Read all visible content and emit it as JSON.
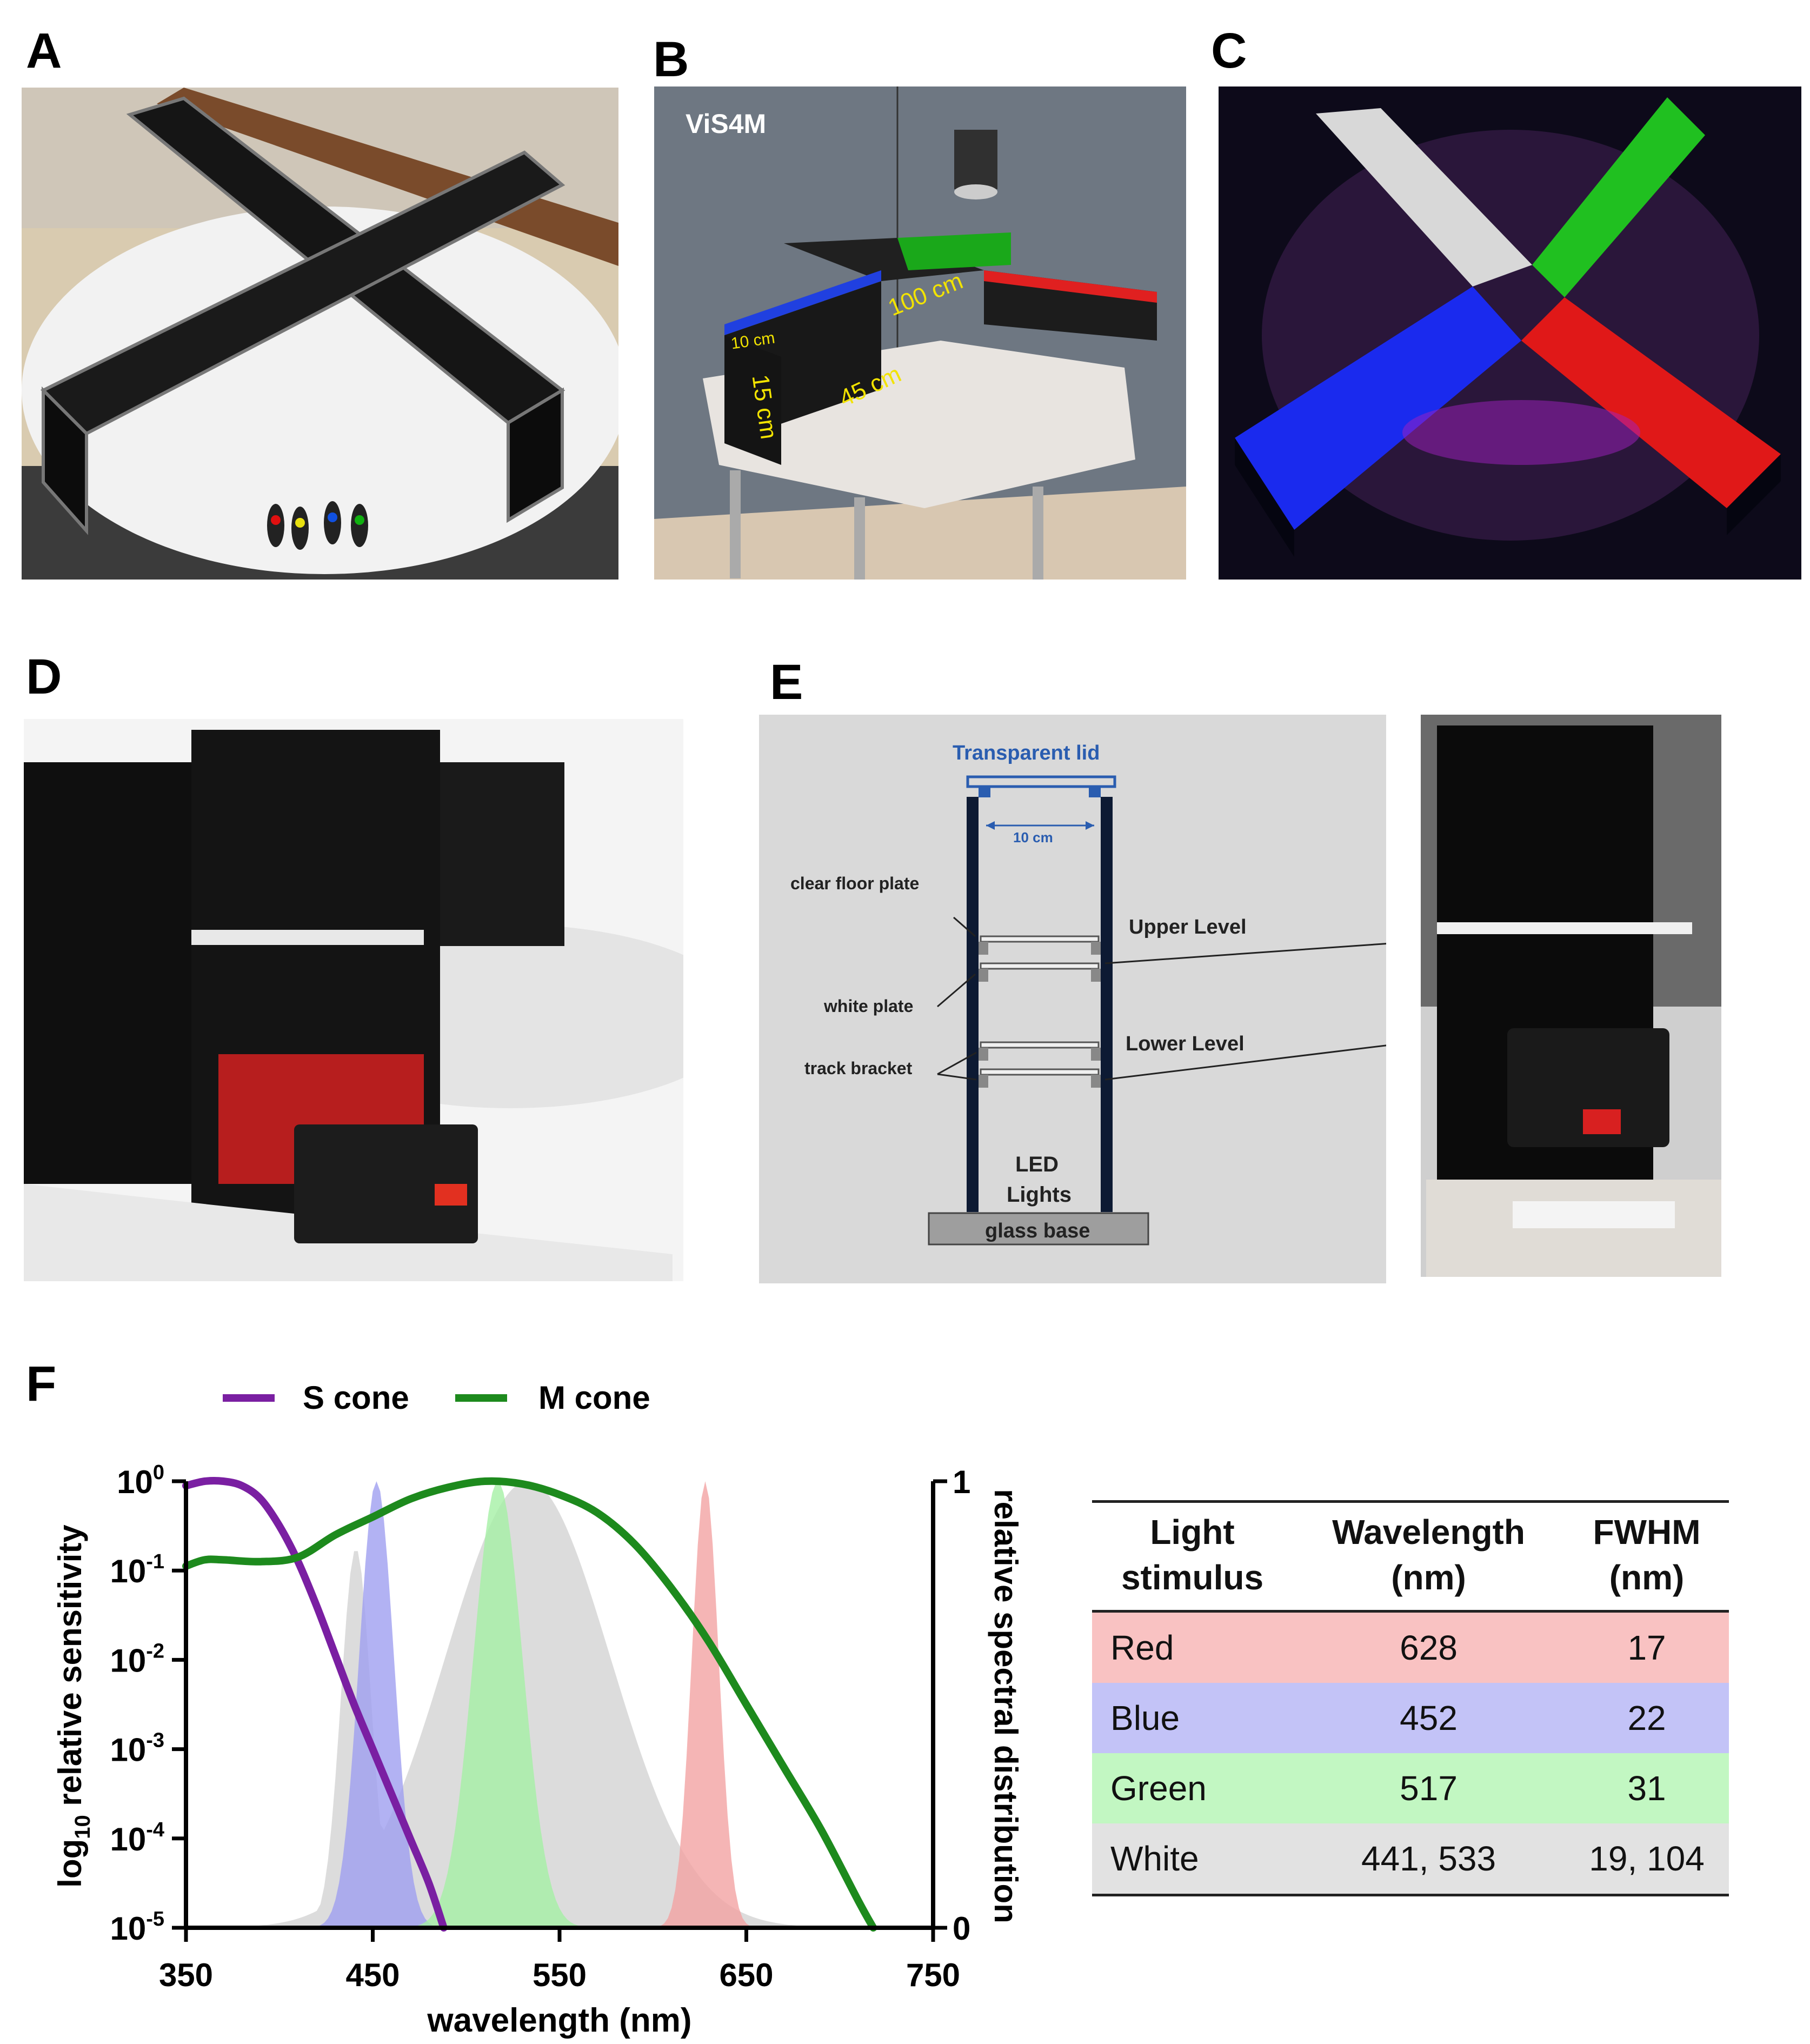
{
  "panels": {
    "A": {
      "letter": "A"
    },
    "B": {
      "letter": "B",
      "title": "ViS4M",
      "dim_width": "10 cm",
      "dim_height": "15 cm",
      "dim_arm": "45 cm",
      "dim_total": "100 cm"
    },
    "C": {
      "letter": "C"
    },
    "D": {
      "letter": "D"
    },
    "E": {
      "letter": "E",
      "transparent_lid": "Transparent lid",
      "width": "10 cm",
      "clear_floor_plate": "clear floor plate",
      "white_plate": "white plate",
      "track_bracket": "track bracket",
      "upper_level": "Upper Level",
      "lower_level": "Lower Level",
      "led_lights_1": "LED",
      "led_lights_2": "Lights",
      "glass_base": "glass base"
    },
    "F": {
      "letter": "F"
    }
  },
  "colors": {
    "s_cone": "#7a1fa2",
    "m_cone": "#1d8a1d",
    "red_fill": "#f2a3a3",
    "blue_fill": "#9f9ff0",
    "green_fill": "#a5f0a5",
    "white_fill": "#d8d8d8",
    "diagram_blue": "#2a5db0"
  },
  "chart_data": {
    "type": "line",
    "legend": [
      "S cone",
      "M cone"
    ],
    "legend_position": "top",
    "xlabel": "wavelength (nm)",
    "ylabel_left_prefix": "log",
    "ylabel_left_sub": "10",
    "ylabel_left_suffix": " relative sensitivity",
    "ylabel_right": "relative spectral distribution",
    "x_ticks": [
      "350",
      "450",
      "550",
      "650",
      "750"
    ],
    "xlim": [
      350,
      750
    ],
    "y_left_ticks": [
      {
        "base": "10",
        "exp": "0"
      },
      {
        "base": "10",
        "exp": "-1"
      },
      {
        "base": "10",
        "exp": "-2"
      },
      {
        "base": "10",
        "exp": "-3"
      },
      {
        "base": "10",
        "exp": "-4"
      },
      {
        "base": "10",
        "exp": "-5"
      }
    ],
    "y_right_ticks": [
      "1",
      "0"
    ],
    "series": [
      {
        "name": "S cone",
        "x": [
          350,
          360,
          370,
          380,
          390,
          400,
          410,
          420,
          430,
          440,
          450,
          460,
          470,
          480,
          488
        ],
        "log10_y": [
          -0.05,
          0,
          0,
          -0.05,
          -0.2,
          -0.5,
          -0.9,
          -1.4,
          -1.95,
          -2.5,
          -3.0,
          -3.5,
          -4.0,
          -4.5,
          -5.0
        ]
      },
      {
        "name": "M cone",
        "x": [
          350,
          360,
          370,
          390,
          410,
          430,
          450,
          470,
          490,
          510,
          530,
          550,
          570,
          590,
          610,
          630,
          650,
          670,
          690,
          710,
          718
        ],
        "log10_y": [
          -0.95,
          -0.88,
          -0.88,
          -0.9,
          -0.85,
          -0.6,
          -0.4,
          -0.2,
          -0.07,
          0,
          -0.03,
          -0.15,
          -0.35,
          -0.7,
          -1.2,
          -1.8,
          -2.5,
          -3.2,
          -3.9,
          -4.7,
          -5.0
        ]
      }
    ],
    "spectra": [
      {
        "name": "Blue",
        "peak": 452,
        "fwhm": 22
      },
      {
        "name": "Green",
        "peak": 517,
        "fwhm": 31
      },
      {
        "name": "Red",
        "peak": 628,
        "fwhm": 17
      },
      {
        "name": "White",
        "peaks": [
          441,
          533
        ],
        "fwhm": [
          19,
          104
        ]
      }
    ]
  },
  "table": {
    "headers": [
      {
        "l1": "Light",
        "l2": "stimulus"
      },
      {
        "l1": "Wavelength",
        "l2": "(nm)"
      },
      {
        "l1": "FWHM",
        "l2": "(nm)"
      }
    ],
    "rows": [
      {
        "stimulus": "Red",
        "wavelength": "628",
        "fwhm": "17",
        "color": "#f9c2c2"
      },
      {
        "stimulus": "Blue",
        "wavelength": "452",
        "fwhm": "22",
        "color": "#c3c3f7"
      },
      {
        "stimulus": "Green",
        "wavelength": "517",
        "fwhm": "31",
        "color": "#c2f7c2"
      },
      {
        "stimulus": "White",
        "wavelength": "441, 533",
        "fwhm": "19, 104",
        "color": "#e2e2e2"
      }
    ]
  }
}
